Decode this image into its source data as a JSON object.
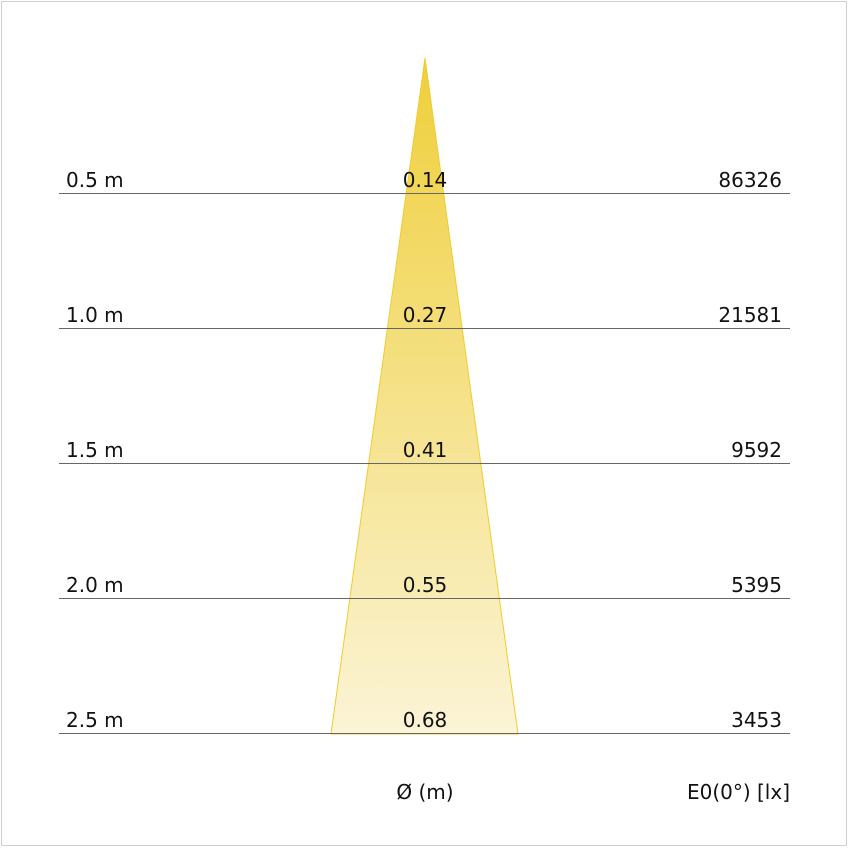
{
  "colors": {
    "cone_top": "#efcf3a",
    "cone_bottom": "#fbf4d6",
    "cone_edge": "#f0cc30",
    "line": "#666666",
    "border": "#d0d0d0"
  },
  "rows": [
    {
      "distance": "0.5 m",
      "diameter": "0.14",
      "illuminance": "86326"
    },
    {
      "distance": "1.0 m",
      "diameter": "0.27",
      "illuminance": "21581"
    },
    {
      "distance": "1.5 m",
      "diameter": "0.41",
      "illuminance": "9592"
    },
    {
      "distance": "2.0 m",
      "diameter": "0.55",
      "illuminance": "5395"
    },
    {
      "distance": "2.5 m",
      "diameter": "0.68",
      "illuminance": "3453"
    }
  ],
  "footer": {
    "diameter_label": "Ø (m)",
    "illuminance_label": "E0(0°) [lx]"
  }
}
